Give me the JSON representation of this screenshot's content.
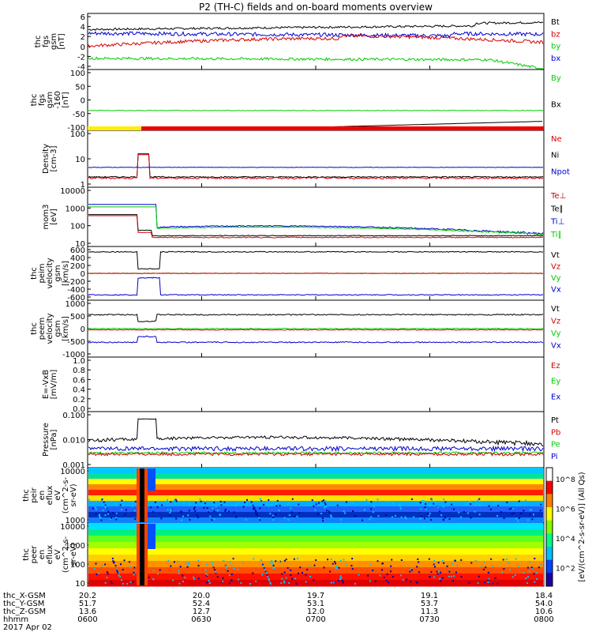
{
  "title": "P2 (TH-C) fields and on-board moments overview",
  "date_label": "2017 Apr 02",
  "colors": {
    "black": "#000000",
    "red": "#d40000",
    "green": "#00cc00",
    "blue": "#0000d0",
    "orange": "#ff8800",
    "yellow": "#ffee00"
  },
  "panels": [
    {
      "id": "fgs",
      "ylabel": [
        "thc",
        "fgs",
        "gsm",
        "[nT]"
      ],
      "yticks": [
        "6",
        "4",
        "2",
        "0",
        "-2",
        "-4"
      ],
      "ylim": [
        -4,
        6.5
      ],
      "legend": [
        {
          "name": "Bt",
          "color": "black"
        },
        {
          "name": "bz",
          "color": "red"
        },
        {
          "name": "by",
          "color": "green"
        },
        {
          "name": "bx",
          "color": "blue"
        }
      ]
    },
    {
      "id": "fgs_gse",
      "ylabel": [
        "thc",
        "fgs",
        "gsm",
        "-160",
        "[nT]"
      ],
      "yticks": [
        "100",
        "50",
        "0",
        "-50",
        "-100"
      ],
      "ylim": [
        -130,
        100
      ],
      "legend": [
        {
          "name": "By",
          "color": "green"
        },
        {
          "name": "Bx",
          "color": "black"
        }
      ]
    },
    {
      "id": "density",
      "ylabel": [
        "Density",
        "[cm-3]"
      ],
      "yticks": [
        "100",
        "10",
        "1"
      ],
      "ylim": [
        1,
        100
      ],
      "log": true,
      "legend": [
        {
          "name": "Ne",
          "color": "red"
        },
        {
          "name": "Ni",
          "color": "black"
        },
        {
          "name": "Npot",
          "color": "blue"
        }
      ]
    },
    {
      "id": "temp",
      "ylabel": [
        "mom3",
        "[eV]"
      ],
      "yticks": [
        "10000",
        "1000",
        "100",
        "10"
      ],
      "ylim": [
        5,
        10000
      ],
      "log": true,
      "legend": [
        {
          "name": "Te⊥",
          "color": "red"
        },
        {
          "name": "Te∥",
          "color": "black"
        },
        {
          "name": "Ti⊥",
          "color": "blue"
        },
        {
          "name": "Ti∥",
          "color": "green"
        }
      ]
    },
    {
      "id": "peim",
      "ylabel": [
        "thc",
        "peim",
        "velocity",
        "gsm",
        "[km/s]"
      ],
      "yticks": [
        "600",
        "400",
        "200",
        "0",
        "-200",
        "-400",
        "-600"
      ],
      "ylim": [
        -600,
        600
      ],
      "legend": [
        {
          "name": "Vt",
          "color": "black"
        },
        {
          "name": "Vz",
          "color": "red"
        },
        {
          "name": "Vy",
          "color": "green"
        },
        {
          "name": "Vx",
          "color": "blue"
        }
      ]
    },
    {
      "id": "peem",
      "ylabel": [
        "thc",
        "peem",
        "velocity",
        "gsm",
        "[km/s]"
      ],
      "yticks": [
        "1000",
        "500",
        "0",
        "-500",
        "-1000"
      ],
      "ylim": [
        -1000,
        1000
      ],
      "legend": [
        {
          "name": "Vt",
          "color": "black"
        },
        {
          "name": "Vz",
          "color": "red"
        },
        {
          "name": "Vy",
          "color": "green"
        },
        {
          "name": "Vx",
          "color": "blue"
        }
      ]
    },
    {
      "id": "efield",
      "ylabel": [
        "E=-VxB",
        "[mV/m]"
      ],
      "yticks": [
        "1.0",
        "0.8",
        "0.6",
        "0.4",
        "0.2",
        "0.0"
      ],
      "ylim": [
        0,
        1
      ],
      "legend": [
        {
          "name": "Ez",
          "color": "red"
        },
        {
          "name": "Ey",
          "color": "green"
        },
        {
          "name": "Ex",
          "color": "blue"
        }
      ]
    },
    {
      "id": "pressure",
      "ylabel": [
        "Pressure",
        "[nPa]"
      ],
      "yticks": [
        "0.100",
        "0.010",
        "0.001"
      ],
      "ylim": [
        0.001,
        0.3
      ],
      "log": true,
      "legend": [
        {
          "name": "Pt",
          "color": "black"
        },
        {
          "name": "Pb",
          "color": "red"
        },
        {
          "name": "Pe",
          "color": "green"
        },
        {
          "name": "Pi",
          "color": "blue"
        }
      ]
    },
    {
      "id": "peir",
      "ylabel": [
        "thc",
        "peir",
        "en",
        "eflux",
        "eV",
        "(cm^2-s-",
        "sr-eV)"
      ],
      "yticks": [
        "10000",
        "1000"
      ]
    },
    {
      "id": "peer",
      "ylabel": [
        "thc",
        "peer",
        "en",
        "eflux",
        "eV",
        "(cm^2-s-",
        "sr-eV)"
      ],
      "yticks": [
        "10000",
        "1000",
        "100",
        "10"
      ]
    }
  ],
  "colorbar": {
    "ticks": [
      "10^8",
      "10^6",
      "10^4",
      "10^2"
    ],
    "label": "[eV/(cm^2-s-sr-eV)] (All Qs)"
  },
  "orbit_rows": {
    "labels": [
      "thc_X-GSM",
      "thc_Y-GSM",
      "thc_Z-GSM",
      "hhmm"
    ],
    "columns": [
      [
        "20.2",
        "51.7",
        "13.6",
        "0600"
      ],
      [
        "20.0",
        "52.4",
        "12.7",
        "0630"
      ],
      [
        "19.7",
        "53.1",
        "12.0",
        "0700"
      ],
      [
        "19.1",
        "53.7",
        "11.3",
        "0730"
      ],
      [
        "18.4",
        "54.0",
        "10.6",
        "0800"
      ]
    ]
  },
  "chart_data": {
    "type": "line",
    "title": "P2 (TH-C) fields and on-board moments overview",
    "x": [
      "0600",
      "0630",
      "0700",
      "0730",
      "0800"
    ],
    "series": [
      {
        "name": "Bt",
        "values": [
          3.6,
          3.4,
          3.2,
          3.5,
          4.6
        ]
      },
      {
        "name": "bz",
        "values": [
          0.5,
          0.2,
          1.0,
          1.5,
          1.8
        ]
      },
      {
        "name": "by",
        "values": [
          -1.8,
          -2.0,
          -1.9,
          -2.2,
          -3.5
        ]
      },
      {
        "name": "bx",
        "values": [
          2.8,
          2.2,
          2.0,
          2.4,
          3.0
        ]
      },
      {
        "name": "Ni",
        "values": [
          2.2,
          2.2,
          2.4,
          2.4,
          2.4
        ]
      },
      {
        "name": "Npot",
        "values": [
          5.0,
          5.0,
          5.0,
          5.0,
          5.0
        ]
      },
      {
        "name": "Vt (peim)",
        "values": [
          480,
          480,
          480,
          490,
          500
        ]
      },
      {
        "name": "Vx (peim)",
        "values": [
          -470,
          -470,
          -480,
          -480,
          -490
        ]
      },
      {
        "name": "Pt",
        "values": [
          0.015,
          0.014,
          0.018,
          0.015,
          0.016
        ]
      }
    ]
  }
}
